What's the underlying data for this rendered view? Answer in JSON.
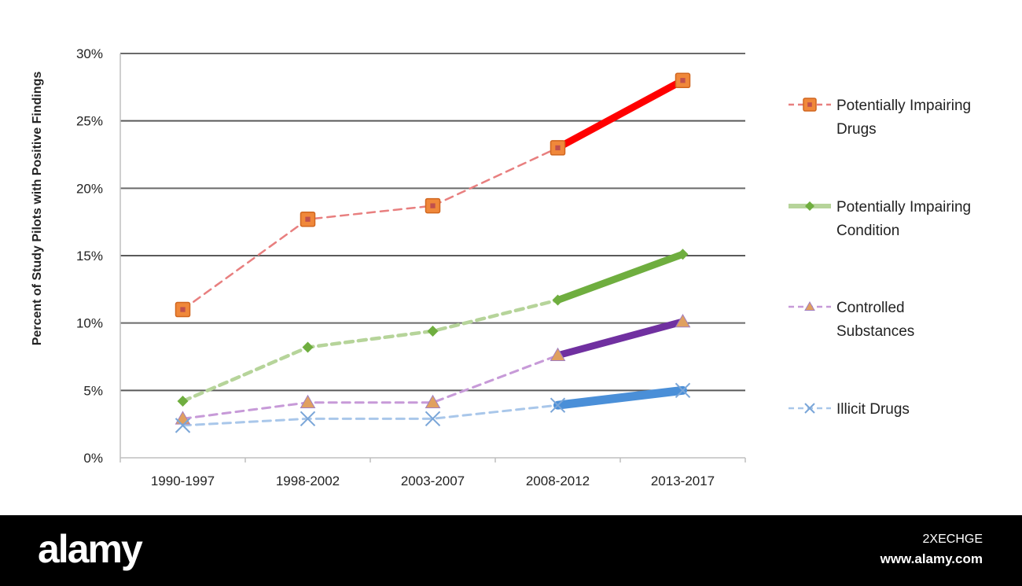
{
  "chart_data": {
    "type": "line",
    "ylabel": "Percent of Study Pilots with Positive Findings",
    "xlabel": "",
    "categories": [
      "1990-1997",
      "1998-2002",
      "2003-2007",
      "2008-2012",
      "2013-2017"
    ],
    "ylim": [
      0,
      30
    ],
    "yticks": [
      0,
      5,
      10,
      15,
      20,
      25,
      30
    ],
    "ytick_labels": [
      "0%",
      "5%",
      "10%",
      "15%",
      "20%",
      "25%",
      "30%"
    ],
    "grid": "horizontal",
    "legend_position": "right",
    "series": [
      {
        "name": "Potentially Impairing Drugs",
        "legend_lines": [
          "Potentially Impairing",
          "Drugs"
        ],
        "values": [
          11,
          17.7,
          18.7,
          23,
          28
        ],
        "color": "#e87f7f",
        "highlight_color": "#ff0000",
        "marker": "square",
        "marker_color": "#f0883a"
      },
      {
        "name": "Potentially Impairing Condition",
        "legend_lines": [
          "Potentially Impairing",
          "Condition"
        ],
        "values": [
          4.2,
          8.2,
          9.4,
          11.7,
          15.1
        ],
        "color": "#b6d49a",
        "highlight_color": "#6fae3f",
        "marker": "diamond",
        "marker_color": "#6fae3f"
      },
      {
        "name": "Controlled Substances",
        "legend_lines": [
          "Controlled",
          "Substances"
        ],
        "values": [
          2.9,
          4.1,
          4.1,
          7.6,
          10.1
        ],
        "color": "#c79ad8",
        "highlight_color": "#7030a0",
        "marker": "triangle",
        "marker_color": "#e0a060"
      },
      {
        "name": "Illicit Drugs",
        "legend_lines": [
          "Illicit Drugs"
        ],
        "values": [
          2.4,
          2.9,
          2.9,
          3.9,
          5.0
        ],
        "color": "#a9c7ea",
        "highlight_color": "#4a8fd8",
        "marker": "x",
        "marker_color": "#7aa6d8"
      }
    ]
  },
  "watermark": {
    "logo": "alamy",
    "image_id": "2XECHGE",
    "url": "www.alamy.com"
  }
}
